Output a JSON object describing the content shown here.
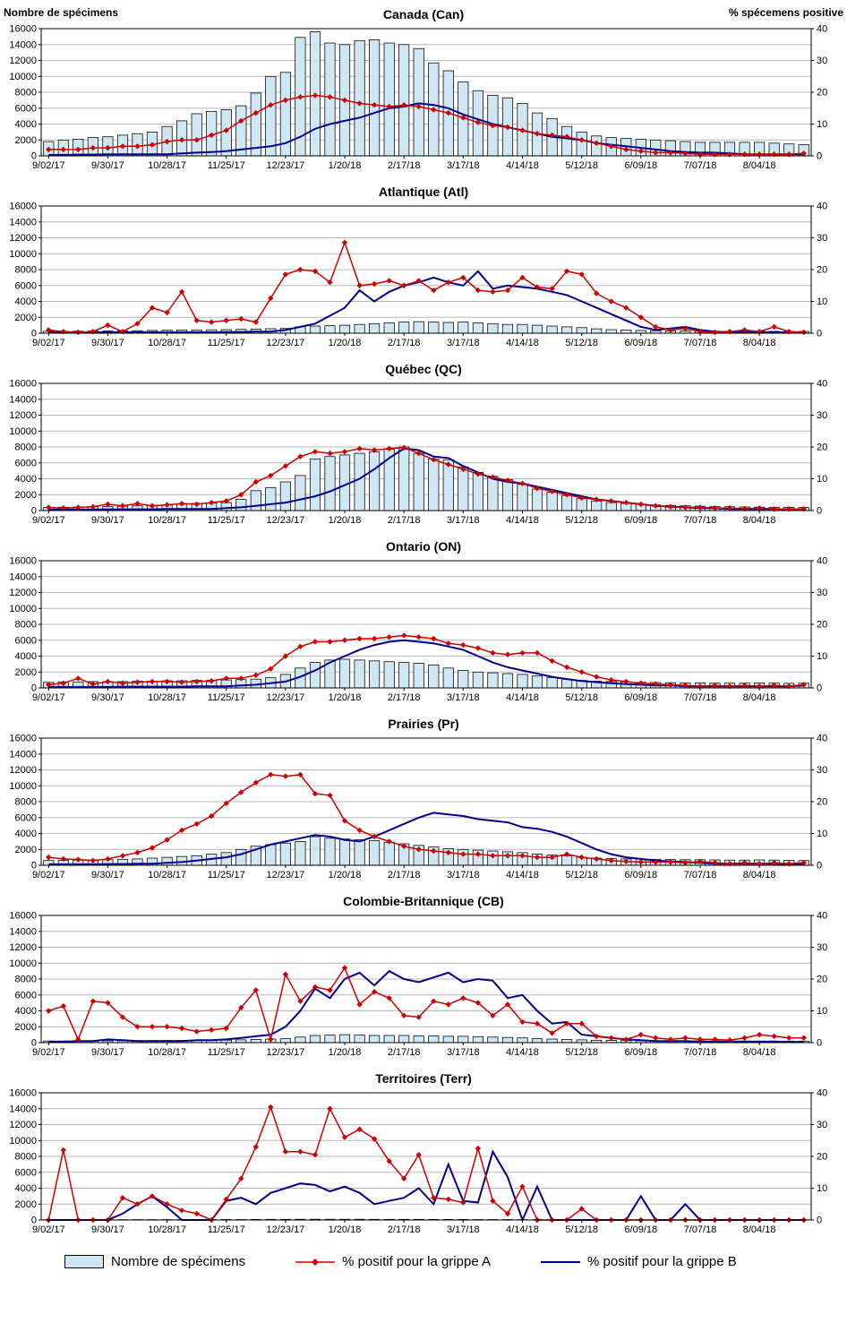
{
  "page": {
    "left_axis_title": "Nombre de spécimens",
    "right_axis_title": "% spécemens positive"
  },
  "legend": {
    "bars": "Nombre de spécimens",
    "flu_a": "% positif pour la grippe A",
    "flu_b": "% positif pour la grippe B"
  },
  "colors": {
    "bar_fill": "#cfe6f5",
    "bar_edge": "#000000",
    "flu_a": "#cc0000",
    "flu_b": "#00008b",
    "gridline": "#b8b8b8"
  },
  "axes": {
    "left_max": 16000,
    "right_max": 40,
    "left_ticks": [
      0,
      2000,
      4000,
      6000,
      8000,
      10000,
      12000,
      14000,
      16000
    ],
    "right_ticks": [
      0,
      10,
      20,
      30,
      40
    ],
    "x_tick_labels": [
      "9/02/17",
      "9/30/17",
      "10/28/17",
      "11/25/17",
      "12/23/17",
      "1/20/18",
      "2/17/18",
      "3/17/18",
      "4/14/18",
      "5/12/18",
      "6/09/18",
      "7/07/18",
      "8/04/18"
    ],
    "x_label_every_n_weeks": 4,
    "weeks": 52
  },
  "chart_data": [
    {
      "type": "combo",
      "title": "Canada (Can)",
      "specimens": [
        1800,
        2000,
        2100,
        2300,
        2400,
        2600,
        2800,
        3000,
        3700,
        4400,
        5300,
        5600,
        5800,
        6300,
        7900,
        10000,
        10500,
        14900,
        15600,
        14200,
        14000,
        14500,
        14600,
        14200,
        14000,
        13500,
        11700,
        10700,
        9300,
        8200,
        7600,
        7300,
        6600,
        5400,
        4700,
        3700,
        3000,
        2500,
        2300,
        2200,
        2100,
        2000,
        1900,
        1800,
        1700,
        1700,
        1700,
        1700,
        1700,
        1600,
        1500,
        1400
      ],
      "pct_flu_a": [
        2,
        2,
        2,
        2.5,
        2.5,
        3,
        3,
        3.5,
        4.5,
        5,
        5,
        6.5,
        8,
        11,
        13.5,
        16,
        17.5,
        18.5,
        19,
        18.5,
        17.5,
        16.5,
        16,
        15.5,
        16,
        15.5,
        14.5,
        13.5,
        12,
        10.5,
        9.5,
        9,
        8,
        7,
        6.5,
        6,
        5,
        4,
        3,
        2,
        1.5,
        1,
        1,
        0.8,
        0.5,
        0.5,
        0.5,
        0.5,
        0.5,
        0.5,
        0.5,
        0.8
      ],
      "pct_flu_b": [
        0.3,
        0.3,
        0.4,
        0.4,
        0.5,
        0.5,
        0.5,
        0.5,
        0.5,
        0.8,
        1,
        1.2,
        1.5,
        2,
        2.5,
        3,
        4,
        6,
        8.5,
        10,
        11,
        12,
        13.5,
        15,
        15.5,
        16.5,
        16,
        15,
        13,
        11.5,
        10,
        9,
        8,
        7,
        6,
        5.5,
        5,
        4,
        3.5,
        3,
        2.5,
        2,
        1.5,
        1.2,
        1,
        1,
        0.8,
        0.5,
        0.5,
        0.5,
        0.5,
        0.5
      ]
    },
    {
      "type": "combo",
      "title": "Atlantique (Atl)",
      "specimens": [
        250,
        250,
        260,
        270,
        280,
        300,
        320,
        350,
        380,
        400,
        420,
        430,
        450,
        480,
        520,
        560,
        600,
        800,
        900,
        950,
        1000,
        1100,
        1200,
        1300,
        1400,
        1450,
        1400,
        1350,
        1400,
        1300,
        1200,
        1100,
        1100,
        1000,
        900,
        800,
        700,
        550,
        450,
        400,
        350,
        320,
        300,
        280,
        260,
        250,
        250,
        250,
        250,
        240,
        230,
        220
      ],
      "pct_flu_a": [
        1,
        0.5,
        0.3,
        0.5,
        2.5,
        0.5,
        3,
        8,
        6.5,
        13,
        4,
        3.5,
        4,
        4.5,
        3.5,
        11,
        18.5,
        20,
        19.5,
        16,
        28.5,
        15,
        15.5,
        16.5,
        15,
        16.5,
        13.5,
        16,
        17.5,
        13.5,
        13,
        13.5,
        17.5,
        14.5,
        14,
        19.5,
        18.5,
        12.5,
        10,
        8,
        5,
        2,
        1,
        1.5,
        0.5,
        0.3,
        0.5,
        1,
        0.5,
        2,
        0.5,
        0.3
      ],
      "pct_flu_b": [
        0.2,
        0.2,
        0.2,
        0.2,
        0.3,
        0.3,
        0.3,
        0.3,
        0.3,
        0.3,
        0.3,
        0.3,
        0.4,
        0.4,
        0.5,
        0.5,
        1,
        2,
        3,
        5.5,
        8,
        13.5,
        10,
        13,
        15,
        16,
        17.5,
        16,
        15,
        19.5,
        14,
        15,
        14.5,
        14,
        13,
        12,
        10,
        8,
        6,
        4,
        2,
        1,
        1.5,
        2,
        1,
        0.5,
        0.3,
        0.3,
        0.3,
        0.3,
        0.2,
        0.2
      ]
    },
    {
      "type": "combo",
      "title": "Québec (QC)",
      "specimens": [
        400,
        420,
        450,
        480,
        500,
        550,
        600,
        650,
        700,
        800,
        900,
        950,
        1000,
        1400,
        2500,
        2900,
        3600,
        4400,
        6500,
        6800,
        7000,
        7200,
        7400,
        7700,
        8000,
        7200,
        6500,
        6400,
        5500,
        4800,
        4300,
        3900,
        3300,
        2700,
        2300,
        1900,
        1500,
        1200,
        1000,
        900,
        800,
        700,
        650,
        600,
        550,
        500,
        480,
        450,
        430,
        420,
        400,
        380
      ],
      "pct_flu_a": [
        1,
        0.8,
        1,
        1.2,
        2,
        1.5,
        2.2,
        1.5,
        1.8,
        2.2,
        2,
        2.5,
        3,
        5,
        9,
        11,
        14,
        17,
        18.5,
        18,
        18.5,
        19.5,
        19,
        19.5,
        19.8,
        18,
        16,
        14.5,
        13,
        11.5,
        10.5,
        9.5,
        8.5,
        7,
        6,
        5,
        4,
        3.5,
        3,
        2.5,
        2,
        1.5,
        1.2,
        1,
        1,
        0.8,
        0.8,
        0.6,
        0.8,
        0.5,
        0.5,
        0.5
      ],
      "pct_flu_b": [
        0.3,
        0.3,
        0.3,
        0.3,
        0.4,
        0.4,
        0.4,
        0.4,
        0.5,
        0.5,
        0.5,
        0.5,
        0.8,
        1,
        1.5,
        2,
        2.5,
        3.5,
        4.5,
        6,
        8,
        10,
        13,
        16.5,
        19.5,
        19,
        17,
        16.5,
        14,
        12,
        10,
        9,
        8.5,
        7.5,
        6.5,
        5.5,
        4.5,
        3.5,
        3,
        2.5,
        2,
        1.5,
        1.2,
        1,
        0.8,
        0.8,
        0.5,
        0.5,
        0.5,
        0.5,
        0.3,
        0.3
      ]
    },
    {
      "type": "combo",
      "title": "Ontario (ON)",
      "specimens": [
        700,
        750,
        750,
        800,
        800,
        800,
        850,
        850,
        900,
        900,
        950,
        950,
        1000,
        1050,
        1100,
        1300,
        1700,
        2500,
        3200,
        3500,
        3600,
        3500,
        3400,
        3300,
        3200,
        3100,
        2900,
        2500,
        2200,
        2000,
        1900,
        1800,
        1700,
        1500,
        1300,
        1100,
        950,
        850,
        800,
        750,
        700,
        680,
        650,
        630,
        620,
        600,
        600,
        600,
        620,
        600,
        580,
        600
      ],
      "pct_flu_a": [
        1,
        1.5,
        3,
        1.2,
        2,
        1.5,
        1.8,
        2,
        2,
        1.8,
        2,
        2.2,
        3,
        3,
        4,
        6,
        10,
        13,
        14.5,
        14.5,
        15,
        15.5,
        15.5,
        16,
        16.5,
        16,
        15.5,
        14,
        13.5,
        12.5,
        11,
        10.5,
        11,
        11,
        8.5,
        6.5,
        5,
        3.5,
        2.5,
        2,
        1.5,
        1.2,
        1,
        0.8,
        0.5,
        0.8,
        0.5,
        0.8,
        0.5,
        0.8,
        0.5,
        1
      ],
      "pct_flu_b": [
        0.3,
        0.3,
        0.3,
        0.3,
        0.3,
        0.4,
        0.4,
        0.4,
        0.4,
        0.4,
        0.5,
        0.5,
        0.5,
        0.8,
        1,
        1.5,
        2,
        3.5,
        5.5,
        8,
        10,
        12,
        13.5,
        14.5,
        15,
        14.5,
        14,
        13,
        12,
        10,
        8,
        6.5,
        5.5,
        4.5,
        3.5,
        2.8,
        2.2,
        1.8,
        1.5,
        1.2,
        1,
        0.8,
        0.8,
        0.5,
        0.5,
        0.5,
        0.5,
        0.5,
        0.5,
        0.5,
        0.5,
        0.8
      ]
    },
    {
      "type": "combo",
      "title": "Prairies (Pr)",
      "specimens": [
        600,
        620,
        650,
        680,
        700,
        750,
        800,
        900,
        1000,
        1100,
        1200,
        1400,
        1600,
        2000,
        2400,
        2600,
        2800,
        3000,
        3600,
        3400,
        3300,
        3200,
        3100,
        2900,
        2700,
        2500,
        2300,
        2100,
        2000,
        1900,
        1800,
        1700,
        1600,
        1400,
        1300,
        1200,
        1000,
        900,
        850,
        800,
        780,
        750,
        720,
        700,
        700,
        680,
        650,
        650,
        680,
        650,
        620,
        600
      ],
      "pct_flu_a": [
        2.5,
        2,
        1.8,
        1.5,
        2,
        3,
        4,
        5.5,
        8,
        11,
        13,
        15.5,
        19.5,
        23,
        26,
        28.5,
        28,
        28.5,
        22.5,
        22,
        14,
        11,
        9,
        7.5,
        6,
        5,
        4.5,
        4,
        3.5,
        3.5,
        3,
        3,
        3,
        2.5,
        2.5,
        3.5,
        2.5,
        2,
        1.5,
        1.2,
        1,
        1,
        1,
        0.8,
        1.2,
        0.8,
        0.5,
        0.8,
        0.5,
        0.8,
        0.5,
        0.8
      ],
      "pct_flu_b": [
        0.3,
        0.3,
        0.3,
        0.3,
        0.4,
        0.4,
        0.5,
        0.5,
        0.8,
        1,
        1.5,
        2,
        2.5,
        3.5,
        5,
        6.5,
        7.5,
        8.5,
        9.5,
        9,
        8,
        7.5,
        9,
        11,
        13,
        15,
        16.5,
        16,
        15.5,
        14.5,
        14,
        13.5,
        12,
        11.5,
        10.5,
        9,
        7,
        5,
        3.5,
        2.5,
        2,
        1.5,
        1.2,
        1,
        0.8,
        0.5,
        0.5,
        0.5,
        0.5,
        0.5,
        0.3,
        0.3
      ]
    },
    {
      "type": "combo",
      "title": "Colombie-Britannique (CB)",
      "specimens": [
        200,
        200,
        210,
        220,
        230,
        240,
        250,
        260,
        270,
        280,
        290,
        300,
        320,
        350,
        400,
        450,
        500,
        700,
        900,
        950,
        1000,
        950,
        900,
        900,
        900,
        850,
        850,
        800,
        800,
        750,
        700,
        650,
        600,
        500,
        450,
        400,
        350,
        300,
        280,
        260,
        250,
        240,
        230,
        220,
        220,
        210,
        200,
        200,
        200,
        200,
        190,
        190
      ],
      "pct_flu_a": [
        10,
        11.5,
        1,
        13,
        12.5,
        8,
        5,
        5,
        5,
        4.5,
        3.5,
        4,
        4.5,
        11,
        16.5,
        1,
        21.5,
        13,
        17.5,
        16.5,
        23.5,
        12,
        16,
        14,
        8.5,
        8,
        13,
        12,
        14,
        12.5,
        8.5,
        12,
        6.5,
        6,
        3,
        6,
        6,
        2,
        1.5,
        1,
        2.5,
        1.5,
        1,
        1.5,
        1,
        1,
        0.8,
        1.5,
        2.5,
        2,
        1.5,
        1.5
      ],
      "pct_flu_b": [
        0.3,
        0.3,
        0.5,
        0.5,
        1,
        0.8,
        0.5,
        0.5,
        0.5,
        0.5,
        0.8,
        0.8,
        1,
        1.5,
        2,
        2.5,
        5,
        10,
        17,
        14,
        20,
        22,
        18,
        22.5,
        20,
        19,
        20.5,
        22,
        19,
        20,
        19.5,
        14,
        15,
        10,
        6,
        6.5,
        2.5,
        2,
        1.5,
        1,
        0.8,
        0.5,
        0.5,
        0.5,
        0.3,
        0.3,
        0.3,
        0.3,
        0.3,
        0.3,
        0.2,
        0.2
      ]
    },
    {
      "type": "combo",
      "title": "Territoires (Terr)",
      "specimens": [
        30,
        30,
        30,
        30,
        30,
        40,
        40,
        40,
        50,
        50,
        50,
        50,
        60,
        60,
        70,
        80,
        80,
        90,
        90,
        90,
        90,
        90,
        80,
        80,
        80,
        80,
        70,
        70,
        70,
        60,
        60,
        60,
        50,
        50,
        50,
        40,
        40,
        40,
        30,
        30,
        30,
        30,
        30,
        30,
        30,
        30,
        30,
        30,
        30,
        30,
        30,
        30
      ],
      "pct_flu_a": [
        0,
        22,
        0,
        0,
        0,
        7,
        5,
        7.5,
        5,
        3,
        2,
        0,
        6.5,
        13,
        23,
        35.5,
        21.5,
        21.5,
        20.5,
        35,
        26,
        28.5,
        25.5,
        18.5,
        13,
        20.5,
        7,
        6.5,
        5.5,
        22.5,
        6,
        2,
        10.5,
        0,
        0,
        0,
        3.5,
        0,
        0,
        0,
        0,
        0,
        0,
        0,
        0,
        0,
        0,
        0,
        0,
        0,
        0,
        0
      ],
      "pct_flu_b": [
        0,
        0,
        0,
        0,
        0,
        2,
        5,
        7.5,
        4,
        0,
        0,
        0,
        6,
        7,
        5,
        8.5,
        10,
        11.5,
        11,
        9,
        10.5,
        8.5,
        5,
        6,
        7,
        10,
        5,
        17.5,
        6,
        5.5,
        21.5,
        13.5,
        0,
        10.5,
        0,
        0,
        0,
        0,
        0,
        0,
        7.5,
        0,
        0,
        5,
        0,
        0,
        0,
        0,
        0,
        0,
        0,
        0
      ]
    }
  ]
}
